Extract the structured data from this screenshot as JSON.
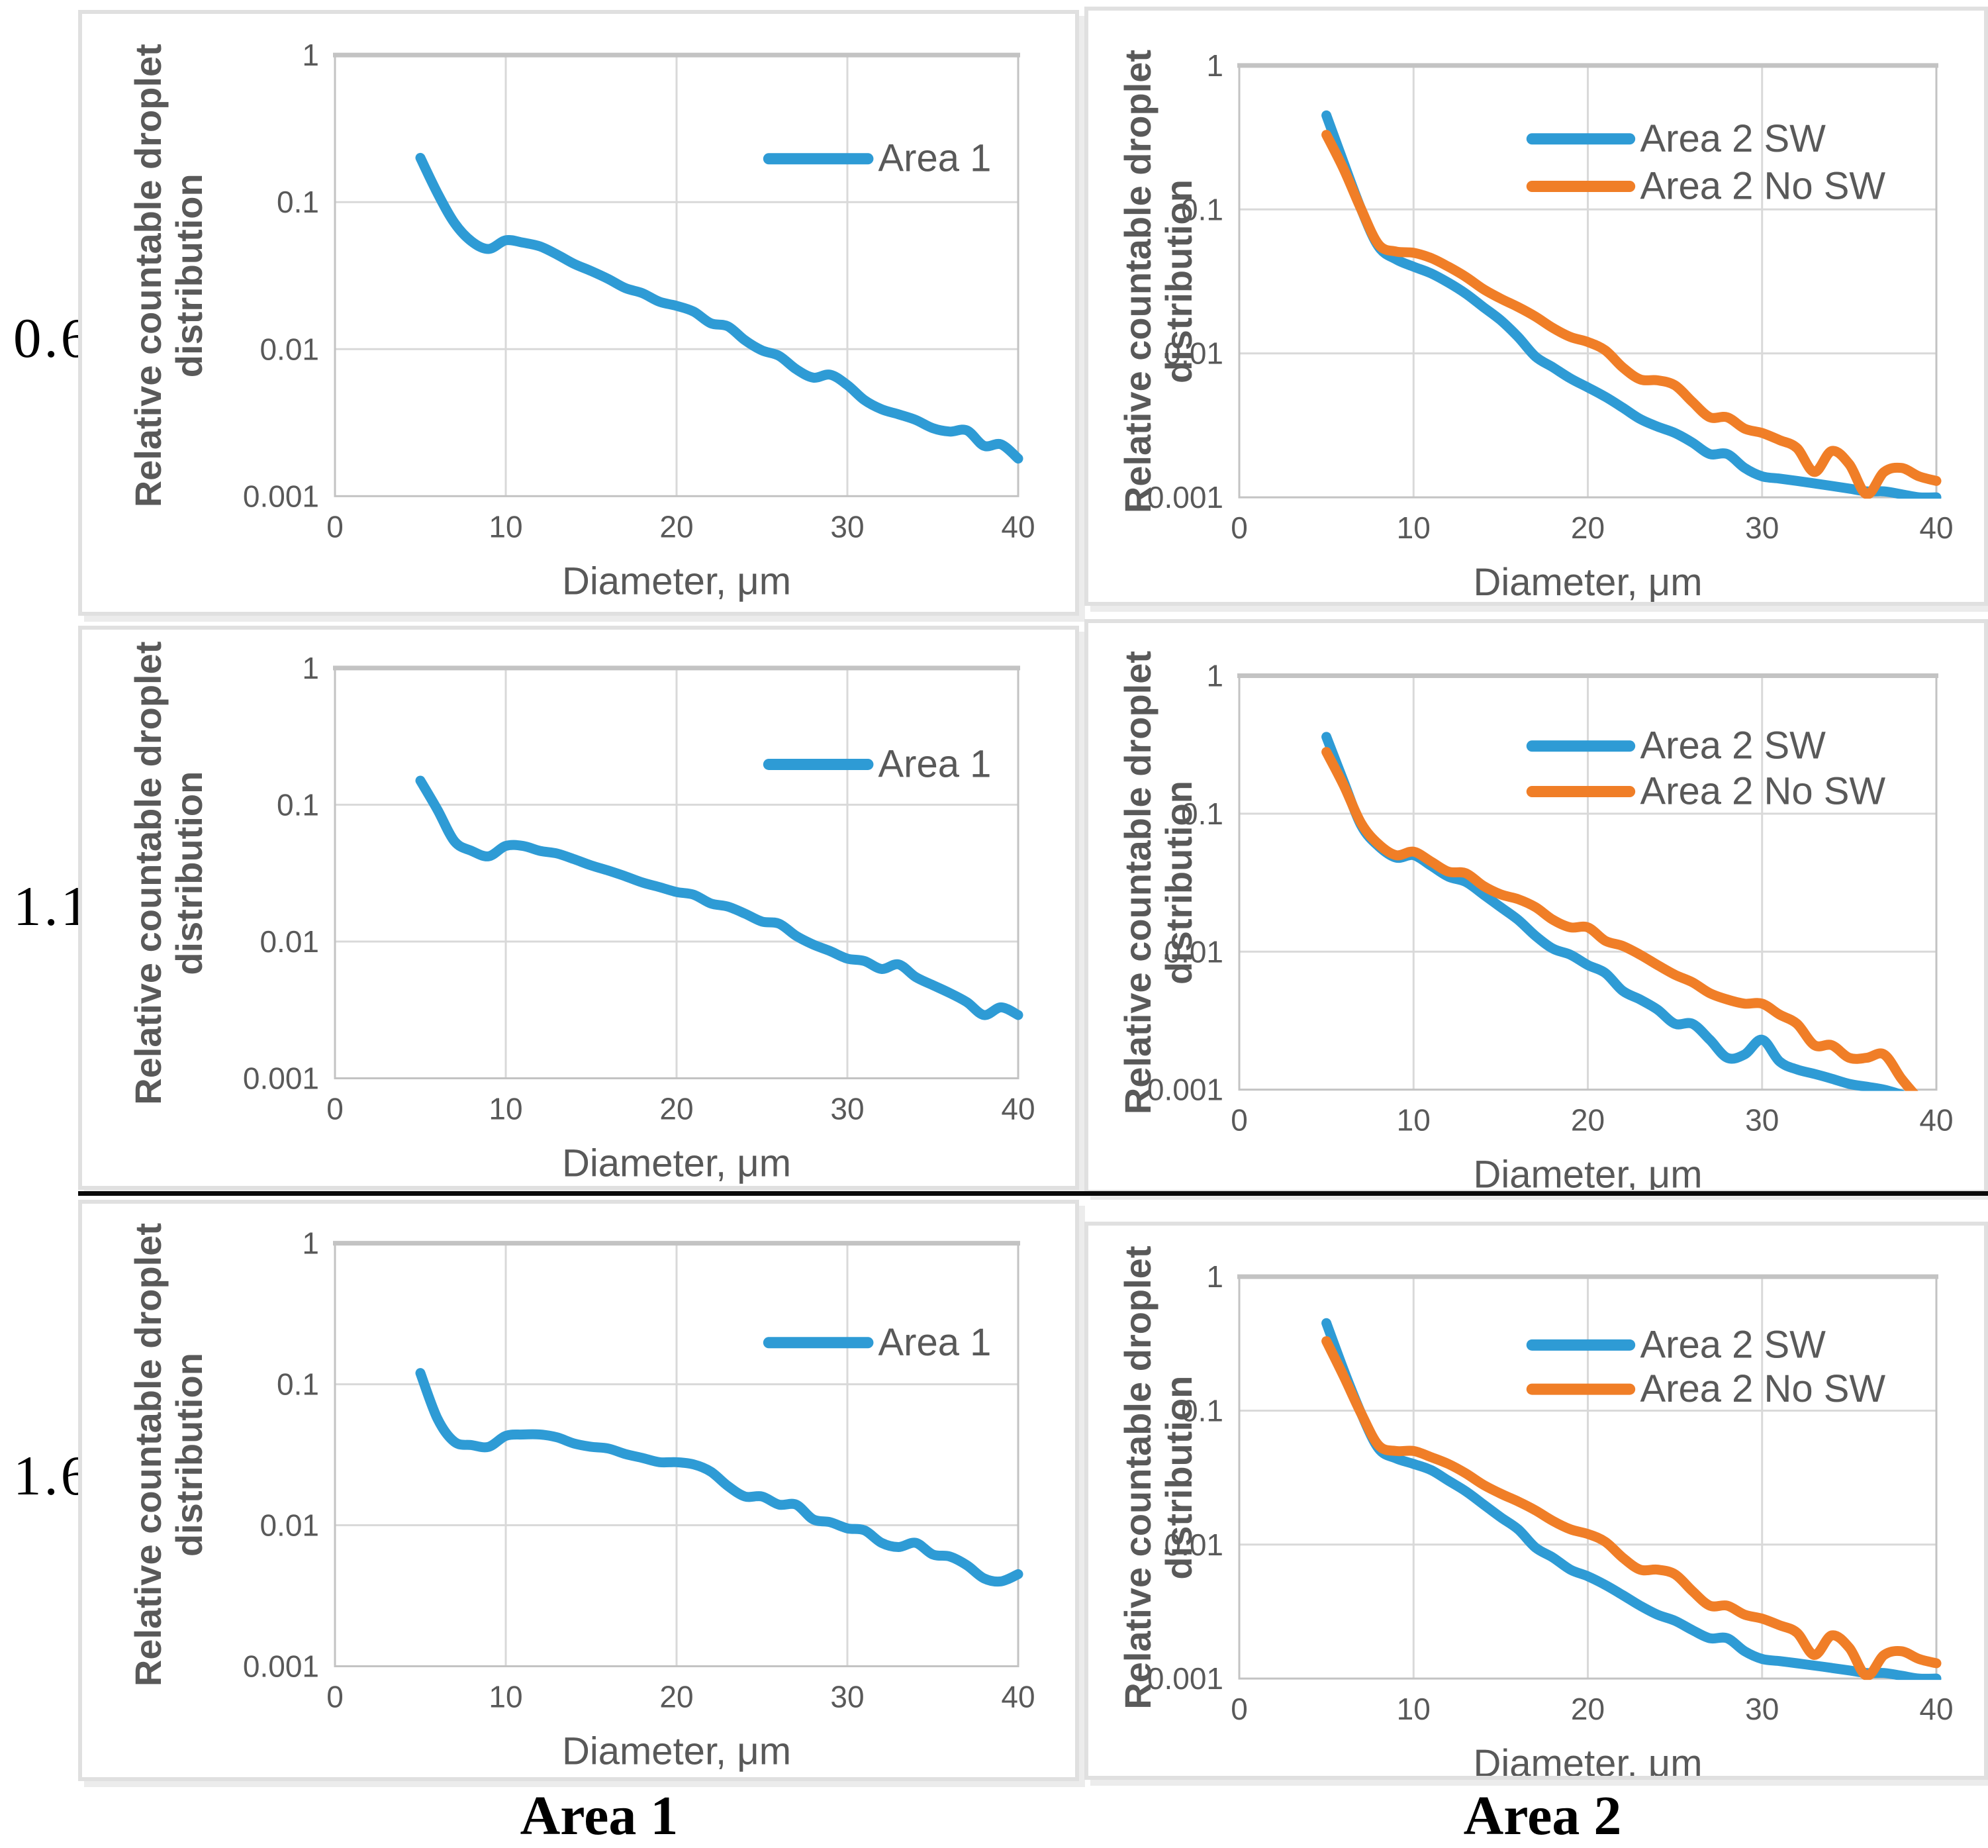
{
  "figure": {
    "row_labels": [
      "0.6",
      "1.1",
      "1.6"
    ],
    "column_captions": [
      "Area 1",
      "Area 2"
    ]
  },
  "axis": {
    "xlabel": "Diameter, μm",
    "ylabel_lines": [
      "Relative countable droplet",
      "distribution"
    ],
    "x_ticks": [
      0,
      10,
      20,
      30,
      40
    ],
    "y_ticks": [
      {
        "label": "1",
        "value": 1
      },
      {
        "label": "0.1",
        "value": 0.1
      },
      {
        "label": "0.01",
        "value": 0.01
      },
      {
        "label": "0.001",
        "value": 0.001
      }
    ],
    "xlim": [
      0,
      40
    ],
    "ylim_log": [
      0.001,
      1
    ],
    "grid": true
  },
  "colors": {
    "blue": "#2E9BD5",
    "orange": "#F07E27",
    "grid": "#D9D9D9",
    "plot_border": "#C3C3C3",
    "axis_text": "#595959",
    "panel_border": "#E0E0E0",
    "divider": "#0A0A0A"
  },
  "chart_data": [
    {
      "type": "line",
      "row": "0.6",
      "column": "Area 1",
      "log_y": true,
      "legend_position": "top-right-inside",
      "series": [
        {
          "name": "Area 1",
          "color": "blue",
          "x": [
            5,
            6,
            7,
            8,
            9,
            10,
            11,
            12,
            13,
            14,
            15,
            16,
            17,
            18,
            19,
            20,
            21,
            22,
            23,
            24,
            25,
            26,
            27,
            28,
            29,
            30,
            31,
            32,
            33,
            34,
            35,
            36,
            37,
            38,
            39,
            40
          ],
          "y": [
            0.2,
            0.115,
            0.072,
            0.054,
            0.048,
            0.055,
            0.053,
            0.05,
            0.044,
            0.038,
            0.034,
            0.03,
            0.026,
            0.024,
            0.021,
            0.0197,
            0.018,
            0.015,
            0.0143,
            0.0115,
            0.0098,
            0.009,
            0.0073,
            0.0064,
            0.0067,
            0.0057,
            0.0045,
            0.0039,
            0.0036,
            0.0033,
            0.0029,
            0.00275,
            0.0028,
            0.0022,
            0.00225,
            0.0018
          ]
        }
      ]
    },
    {
      "type": "line",
      "row": "0.6",
      "column": "Area 2",
      "log_y": true,
      "legend_position": "top-right-inside",
      "series": [
        {
          "name": "Area 2 SW",
          "color": "blue",
          "x": [
            5,
            6,
            7,
            8,
            9,
            10,
            11,
            12,
            13,
            14,
            15,
            16,
            17,
            18,
            19,
            20,
            21,
            22,
            23,
            24,
            25,
            26,
            27,
            28,
            29,
            30,
            31,
            32,
            33,
            34,
            35,
            36,
            37,
            38,
            39,
            40
          ],
          "y": [
            0.45,
            0.21,
            0.1,
            0.055,
            0.045,
            0.04,
            0.036,
            0.031,
            0.026,
            0.021,
            0.017,
            0.013,
            0.0095,
            0.008,
            0.0067,
            0.0058,
            0.005,
            0.0042,
            0.0035,
            0.0031,
            0.0028,
            0.0024,
            0.002,
            0.002,
            0.0016,
            0.0014,
            0.00135,
            0.0013,
            0.00125,
            0.0012,
            0.00115,
            0.0011,
            0.0011,
            0.00105,
            0.001,
            0.001
          ]
        },
        {
          "name": "Area 2 No SW",
          "color": "orange",
          "x": [
            5,
            6,
            7,
            8,
            9,
            10,
            11,
            12,
            13,
            14,
            15,
            16,
            17,
            18,
            19,
            20,
            21,
            22,
            23,
            24,
            25,
            26,
            27,
            28,
            29,
            30,
            31,
            32,
            33,
            34,
            35,
            36,
            37,
            38,
            39,
            40
          ],
          "y": [
            0.33,
            0.19,
            0.1,
            0.057,
            0.051,
            0.05,
            0.046,
            0.04,
            0.034,
            0.028,
            0.024,
            0.021,
            0.018,
            0.015,
            0.013,
            0.012,
            0.0105,
            0.008,
            0.0066,
            0.0065,
            0.006,
            0.0046,
            0.0036,
            0.0036,
            0.003,
            0.0028,
            0.0025,
            0.0022,
            0.0015,
            0.0021,
            0.0017,
            0.00105,
            0.0015,
            0.0016,
            0.0014,
            0.0013
          ]
        }
      ]
    },
    {
      "type": "line",
      "row": "1.1",
      "column": "Area 1",
      "log_y": true,
      "legend_position": "top-right-inside",
      "series": [
        {
          "name": "Area 1",
          "color": "blue",
          "x": [
            5,
            6,
            7,
            8,
            9,
            10,
            11,
            12,
            13,
            14,
            15,
            16,
            17,
            18,
            19,
            20,
            21,
            22,
            23,
            24,
            25,
            26,
            27,
            28,
            29,
            30,
            31,
            32,
            33,
            34,
            35,
            36,
            37,
            38,
            39,
            40
          ],
          "y": [
            0.15,
            0.092,
            0.054,
            0.046,
            0.042,
            0.05,
            0.05,
            0.046,
            0.044,
            0.04,
            0.036,
            0.033,
            0.03,
            0.027,
            0.025,
            0.023,
            0.022,
            0.019,
            0.018,
            0.016,
            0.014,
            0.0135,
            0.011,
            0.0095,
            0.0085,
            0.0075,
            0.0072,
            0.0063,
            0.0068,
            0.0055,
            0.0048,
            0.0042,
            0.0036,
            0.0029,
            0.0033,
            0.0029
          ]
        }
      ]
    },
    {
      "type": "line",
      "row": "1.1",
      "column": "Area 2",
      "log_y": true,
      "legend_position": "top-right-inside",
      "series": [
        {
          "name": "Area 2 SW",
          "color": "blue",
          "x": [
            5,
            6,
            7,
            8,
            9,
            10,
            11,
            12,
            13,
            14,
            15,
            16,
            17,
            18,
            19,
            20,
            21,
            22,
            23,
            24,
            25,
            26,
            27,
            28,
            29,
            30,
            31,
            32,
            33,
            34,
            35,
            36,
            37,
            38
          ],
          "y": [
            0.36,
            0.17,
            0.082,
            0.058,
            0.048,
            0.05,
            0.042,
            0.035,
            0.032,
            0.026,
            0.021,
            0.017,
            0.013,
            0.0105,
            0.0095,
            0.008,
            0.007,
            0.0052,
            0.0045,
            0.0038,
            0.003,
            0.003,
            0.0023,
            0.0017,
            0.0018,
            0.0023,
            0.0016,
            0.0014,
            0.0013,
            0.0012,
            0.0011,
            0.00105,
            0.001,
            0.00092
          ]
        },
        {
          "name": "Area 2 No SW",
          "color": "orange",
          "x": [
            5,
            6,
            7,
            8,
            9,
            10,
            11,
            12,
            13,
            14,
            15,
            16,
            17,
            18,
            19,
            20,
            21,
            22,
            23,
            24,
            25,
            26,
            27,
            28,
            29,
            30,
            31,
            32,
            33,
            34,
            35,
            36,
            37,
            38,
            39
          ],
          "y": [
            0.28,
            0.16,
            0.085,
            0.06,
            0.05,
            0.053,
            0.045,
            0.038,
            0.037,
            0.03,
            0.026,
            0.024,
            0.021,
            0.017,
            0.015,
            0.015,
            0.012,
            0.011,
            0.0095,
            0.008,
            0.0068,
            0.006,
            0.005,
            0.0045,
            0.0042,
            0.0042,
            0.0035,
            0.003,
            0.0021,
            0.0021,
            0.0017,
            0.0017,
            0.0018,
            0.0012,
            0.00085
          ]
        }
      ]
    },
    {
      "type": "line",
      "row": "1.6",
      "column": "Area 1",
      "log_y": true,
      "legend_position": "top-right-inside",
      "series": [
        {
          "name": "Area 1",
          "color": "blue",
          "x": [
            5,
            6,
            7,
            8,
            9,
            10,
            11,
            12,
            13,
            14,
            15,
            16,
            17,
            18,
            19,
            20,
            21,
            22,
            23,
            24,
            25,
            26,
            27,
            28,
            29,
            30,
            31,
            32,
            33,
            34,
            35,
            36,
            37,
            38,
            39,
            40
          ],
          "y": [
            0.12,
            0.057,
            0.039,
            0.037,
            0.036,
            0.043,
            0.044,
            0.044,
            0.042,
            0.038,
            0.036,
            0.035,
            0.032,
            0.03,
            0.028,
            0.028,
            0.027,
            0.024,
            0.019,
            0.016,
            0.016,
            0.014,
            0.014,
            0.011,
            0.0105,
            0.0095,
            0.0092,
            0.0075,
            0.007,
            0.0075,
            0.0062,
            0.006,
            0.0052,
            0.0042,
            0.004,
            0.0045
          ]
        }
      ]
    },
    {
      "type": "line",
      "row": "1.6",
      "column": "Area 2",
      "log_y": true,
      "legend_position": "top-right-inside",
      "series": [
        {
          "name": "Area 2 SW",
          "color": "blue",
          "x": [
            5,
            6,
            7,
            8,
            9,
            10,
            11,
            12,
            13,
            14,
            15,
            16,
            17,
            18,
            19,
            20,
            21,
            22,
            23,
            24,
            25,
            26,
            27,
            28,
            29,
            30,
            31,
            32,
            33,
            34,
            35,
            36,
            37,
            38,
            39,
            40
          ],
          "y": [
            0.45,
            0.2,
            0.095,
            0.052,
            0.044,
            0.04,
            0.036,
            0.03,
            0.025,
            0.02,
            0.016,
            0.013,
            0.0095,
            0.008,
            0.0065,
            0.0058,
            0.005,
            0.0042,
            0.0035,
            0.003,
            0.0027,
            0.0023,
            0.002,
            0.002,
            0.0016,
            0.0014,
            0.00135,
            0.0013,
            0.00125,
            0.0012,
            0.00115,
            0.0011,
            0.0011,
            0.00105,
            0.001,
            0.001
          ]
        },
        {
          "name": "Area 2 No SW",
          "color": "orange",
          "x": [
            5,
            6,
            7,
            8,
            9,
            10,
            11,
            12,
            13,
            14,
            15,
            16,
            17,
            18,
            19,
            20,
            21,
            22,
            23,
            24,
            25,
            26,
            27,
            28,
            29,
            30,
            31,
            32,
            33,
            34,
            35,
            36,
            37,
            38,
            39,
            40
          ],
          "y": [
            0.33,
            0.18,
            0.095,
            0.055,
            0.05,
            0.05,
            0.045,
            0.04,
            0.034,
            0.028,
            0.024,
            0.021,
            0.018,
            0.015,
            0.013,
            0.012,
            0.0105,
            0.008,
            0.0065,
            0.0065,
            0.006,
            0.0045,
            0.0035,
            0.0035,
            0.003,
            0.0028,
            0.0025,
            0.0022,
            0.0015,
            0.0021,
            0.0017,
            0.00105,
            0.0015,
            0.0016,
            0.0014,
            0.0013
          ]
        }
      ]
    }
  ]
}
